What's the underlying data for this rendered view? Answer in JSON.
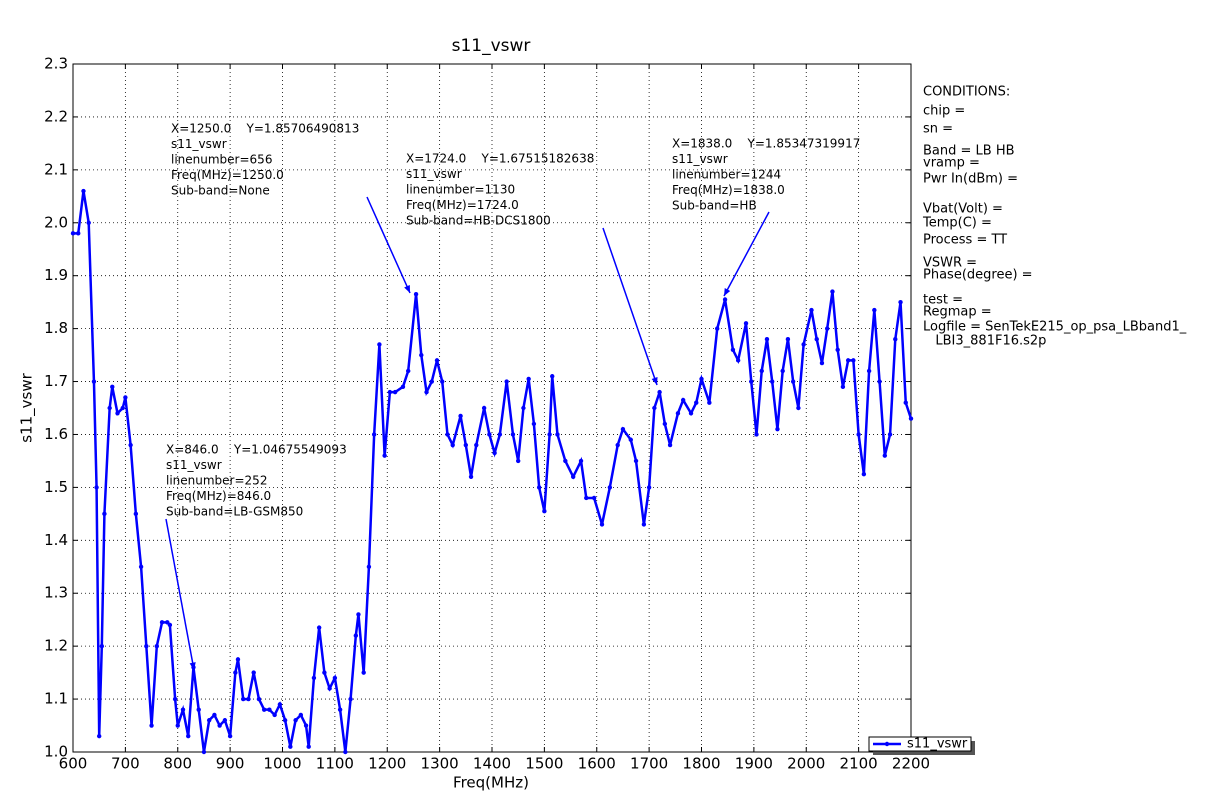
{
  "chart_data": {
    "type": "line",
    "title": "s11_vswr",
    "x_label": "Freq(MHz)",
    "y_label": "s11_vswr",
    "x": [
      600,
      610,
      620,
      630,
      640,
      645,
      650,
      655,
      660,
      670,
      675,
      685,
      695,
      700,
      710,
      720,
      730,
      740,
      750,
      760,
      770,
      780,
      785,
      795,
      800,
      810,
      820,
      830,
      840,
      850,
      860,
      870,
      880,
      890,
      900,
      910,
      915,
      925,
      935,
      945,
      955,
      965,
      975,
      985,
      995,
      1005,
      1015,
      1025,
      1035,
      1045,
      1050,
      1060,
      1070,
      1080,
      1090,
      1100,
      1110,
      1120,
      1130,
      1140,
      1145,
      1155,
      1165,
      1175,
      1185,
      1195,
      1205,
      1215,
      1230,
      1240,
      1255,
      1265,
      1275,
      1285,
      1295,
      1305,
      1315,
      1325,
      1340,
      1350,
      1360,
      1370,
      1385,
      1395,
      1405,
      1415,
      1428,
      1440,
      1450,
      1460,
      1470,
      1480,
      1490,
      1500,
      1510,
      1515,
      1525,
      1540,
      1555,
      1570,
      1580,
      1595,
      1610,
      1625,
      1640,
      1650,
      1665,
      1675,
      1690,
      1700,
      1710,
      1720,
      1730,
      1740,
      1755,
      1765,
      1780,
      1790,
      1800,
      1815,
      1830,
      1845,
      1860,
      1870,
      1885,
      1895,
      1905,
      1915,
      1925,
      1935,
      1945,
      1955,
      1965,
      1975,
      1985,
      1995,
      2010,
      2020,
      2030,
      2040,
      2050,
      2060,
      2070,
      2080,
      2090,
      2100,
      2110,
      2120,
      2130,
      2140,
      2150,
      2160,
      2170,
      2180,
      2190,
      2200
    ],
    "series": [
      {
        "name": "s11_vswr",
        "color": "#0000ff",
        "values": [
          1.98,
          1.98,
          2.06,
          2.0,
          1.7,
          1.5,
          1.03,
          1.2,
          1.45,
          1.65,
          1.69,
          1.64,
          1.65,
          1.67,
          1.58,
          1.45,
          1.35,
          1.2,
          1.05,
          1.2,
          1.245,
          1.245,
          1.24,
          1.1,
          1.05,
          1.08,
          1.03,
          1.16,
          1.08,
          1.0,
          1.06,
          1.07,
          1.05,
          1.06,
          1.03,
          1.15,
          1.175,
          1.1,
          1.1,
          1.15,
          1.1,
          1.08,
          1.08,
          1.07,
          1.09,
          1.06,
          1.01,
          1.06,
          1.07,
          1.05,
          1.01,
          1.14,
          1.235,
          1.15,
          1.12,
          1.14,
          1.08,
          1.0,
          1.1,
          1.22,
          1.26,
          1.15,
          1.35,
          1.6,
          1.77,
          1.56,
          1.68,
          1.68,
          1.69,
          1.72,
          1.865,
          1.75,
          1.68,
          1.7,
          1.74,
          1.7,
          1.6,
          1.58,
          1.635,
          1.58,
          1.52,
          1.58,
          1.65,
          1.6,
          1.565,
          1.6,
          1.7,
          1.6,
          1.55,
          1.65,
          1.705,
          1.62,
          1.5,
          1.455,
          1.6,
          1.71,
          1.6,
          1.55,
          1.52,
          1.55,
          1.48,
          1.48,
          1.43,
          1.5,
          1.58,
          1.61,
          1.59,
          1.55,
          1.43,
          1.5,
          1.65,
          1.68,
          1.62,
          1.58,
          1.64,
          1.665,
          1.64,
          1.66,
          1.705,
          1.66,
          1.8,
          1.855,
          1.76,
          1.74,
          1.81,
          1.7,
          1.6,
          1.72,
          1.78,
          1.7,
          1.61,
          1.72,
          1.78,
          1.7,
          1.65,
          1.77,
          1.835,
          1.78,
          1.735,
          1.8,
          1.87,
          1.76,
          1.69,
          1.74,
          1.74,
          1.6,
          1.525,
          1.72,
          1.835,
          1.7,
          1.56,
          1.6,
          1.78,
          1.85,
          1.66,
          1.63
        ]
      }
    ],
    "xlim": [
      600,
      2200
    ],
    "xticks": [
      600,
      700,
      800,
      900,
      1000,
      1100,
      1200,
      1300,
      1400,
      1500,
      1600,
      1700,
      1800,
      1900,
      2000,
      2100,
      2200
    ],
    "ylim": [
      1.0,
      2.3
    ],
    "yticks": [
      {
        "value": 1.0,
        "label": "1.0"
      },
      1.1,
      1.2,
      1.3,
      1.4,
      1.5,
      1.6,
      1.7,
      1.8,
      1.9,
      {
        "value": 2.0,
        "label": "2.0"
      },
      2.1,
      2.2,
      2.3
    ],
    "grid": true,
    "legend": "lower right",
    "annotations": [
      [
        "X=1250.0    Y=1.85706490813",
        "s11_vswr",
        "linenumber=656",
        "Freq(MHz)=1250.0",
        "Sub-band=None"
      ],
      [
        "X=1724.0    Y=1.67515182638",
        "s11_vswr",
        "linenumber=1130",
        "Freq(MHz)=1724.0",
        "Sub-band=HB-DCS1800"
      ],
      [
        "X=1838.0    Y=1.85347319917",
        "s11_vswr",
        "linenumber=1244",
        "Freq(MHz)=1838.0",
        "Sub-band=HB"
      ],
      [
        "X=846.0    Y=1.04675549093",
        "s11_vswr",
        "linenumber=252",
        "Freq(MHz)=846.0",
        "Sub-band=LB-GSM850"
      ]
    ],
    "conditions": [
      "CONDITIONS:",
      "chip =",
      "sn =",
      "Band = LB HB",
      "vramp =",
      "Pwr In(dBm) =",
      "Vbat(Volt) =",
      "Temp(C) =",
      "Process = TT",
      "VSWR =",
      "Phase(degree) =",
      "test =",
      "Regmap =",
      "Logfile = SenTekE215_op_psa_LBband1_",
      "   LBI3_881F16.s2p"
    ]
  }
}
